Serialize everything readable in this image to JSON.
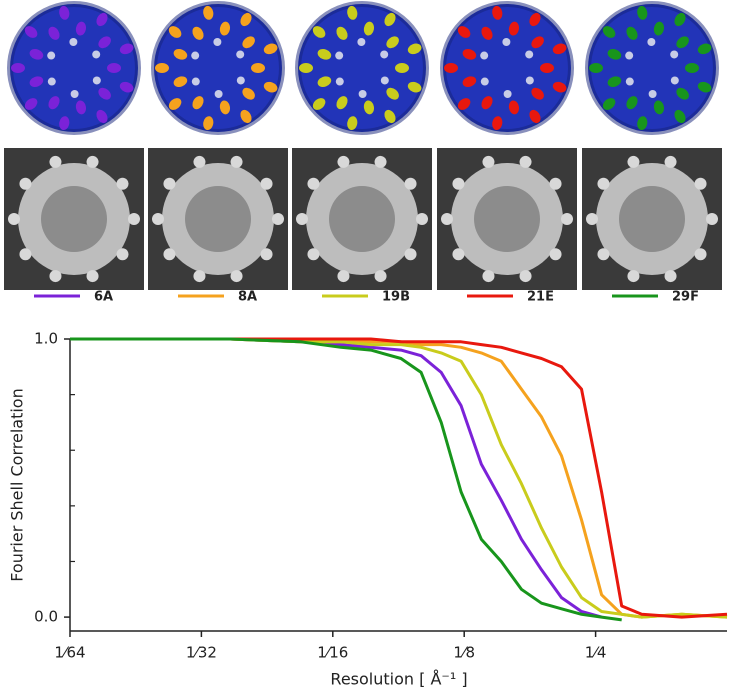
{
  "chart_data": {
    "type": "line",
    "xlabel": "Resolution [ Å⁻¹ ]",
    "ylabel": "Fourier Shell Correlation",
    "x": [
      0.015625,
      0.02386,
      0.03644,
      0.05277,
      0.0652,
      0.07642,
      0.08957,
      0.09956,
      0.1107,
      0.123,
      0.1368,
      0.152,
      0.169,
      0.1879,
      0.2088,
      0.2321,
      0.2581,
      0.2869,
      0.3189,
      0.394,
      0.5
    ],
    "xlim": [
      0.015625,
      0.5
    ],
    "xscale": "log2",
    "xticks": [
      {
        "value": 0.015625,
        "label": "1⁄64"
      },
      {
        "value": 0.03125,
        "label": "1⁄32"
      },
      {
        "value": 0.0625,
        "label": "1⁄16"
      },
      {
        "value": 0.125,
        "label": "1⁄8"
      },
      {
        "value": 0.25,
        "label": "1⁄4"
      }
    ],
    "ylim": [
      -0.05,
      1.0
    ],
    "yticks": [
      {
        "value": 0,
        "label": "0.0"
      },
      {
        "value": 1,
        "label": "1.0"
      }
    ],
    "yminor_ticks": [
      0.2,
      0.4,
      0.6,
      0.8
    ],
    "series": [
      {
        "name": "6A",
        "color": "#7b22d8",
        "values": [
          1,
          1,
          1,
          0.99,
          0.98,
          0.97,
          0.96,
          0.94,
          0.88,
          0.76,
          0.55,
          0.42,
          0.28,
          0.17,
          0.07,
          0.02,
          0.0,
          null,
          null,
          null,
          null
        ]
      },
      {
        "name": "8A",
        "color": "#f5a21e",
        "values": [
          1,
          1,
          1,
          0.99,
          0.99,
          0.99,
          0.99,
          0.98,
          0.98,
          0.97,
          0.95,
          0.92,
          0.82,
          0.72,
          0.58,
          0.35,
          0.08,
          0.01,
          0.0,
          0.01,
          0.0
        ]
      },
      {
        "name": "19B",
        "color": "#c9cc1c",
        "values": [
          1,
          1,
          1,
          0.99,
          0.99,
          0.98,
          0.98,
          0.97,
          0.95,
          0.92,
          0.8,
          0.62,
          0.48,
          0.32,
          0.18,
          0.07,
          0.02,
          0.01,
          0.0,
          0.01,
          0.0
        ]
      },
      {
        "name": "21E",
        "color": "#e8180e",
        "values": [
          1,
          1,
          1,
          1,
          1,
          1,
          0.99,
          0.99,
          0.99,
          0.99,
          0.98,
          0.97,
          0.95,
          0.93,
          0.9,
          0.82,
          0.45,
          0.04,
          0.01,
          0.0,
          0.01
        ]
      },
      {
        "name": "29F",
        "color": "#18951c",
        "values": [
          1,
          1,
          1,
          0.99,
          0.97,
          0.96,
          0.93,
          0.88,
          0.7,
          0.45,
          0.28,
          0.2,
          0.1,
          0.05,
          0.03,
          0.01,
          0.0,
          -0.01,
          null,
          null,
          null
        ]
      }
    ]
  }
}
